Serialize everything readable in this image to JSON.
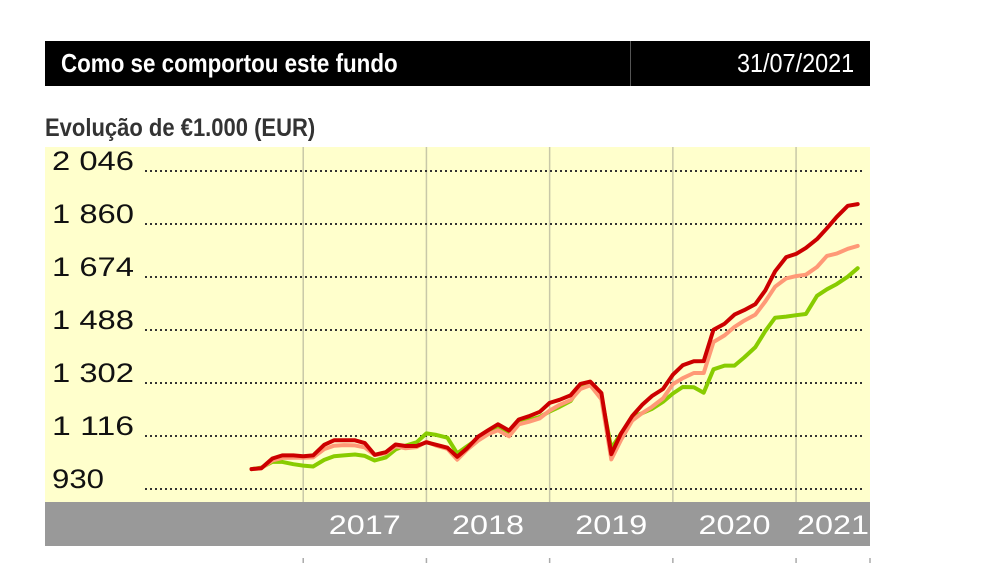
{
  "header": {
    "title": "Como se comportou este fundo",
    "date": "31/07/2021"
  },
  "subtitle": "Evolução de €1.000 (EUR)",
  "colors": {
    "plot_background": "#ffffcc",
    "axis_band": "#999999",
    "grid_dotted": "#333333",
    "year_lines": "#c8c8a8"
  },
  "chart_data": {
    "type": "line",
    "title": "Evolução de €1.000 (EUR)",
    "ylim": [
      930,
      2046
    ],
    "yticks": [
      930,
      1116,
      1302,
      1488,
      1674,
      1860,
      2046
    ],
    "ytick_labels": [
      "930",
      "1 116",
      "1 302",
      "1 488",
      "1 674",
      "1 860",
      "2 046"
    ],
    "xlim": [
      2016.0,
      2021.6
    ],
    "year_boundaries": [
      2017,
      2018,
      2019,
      2020,
      2021
    ],
    "xtick_labels": [
      "2017",
      "2018",
      "2019",
      "2020",
      "2021"
    ],
    "grid": true,
    "series": [
      {
        "color": "#cc0000",
        "x": [
          2016.58,
          2016.66,
          2016.75,
          2016.83,
          2016.92,
          2017.0,
          2017.08,
          2017.17,
          2017.25,
          2017.33,
          2017.42,
          2017.5,
          2017.58,
          2017.67,
          2017.75,
          2017.83,
          2017.92,
          2018.0,
          2018.08,
          2018.17,
          2018.25,
          2018.33,
          2018.42,
          2018.5,
          2018.58,
          2018.67,
          2018.75,
          2018.83,
          2018.92,
          2019.0,
          2019.08,
          2019.17,
          2019.25,
          2019.33,
          2019.42,
          2019.5,
          2019.58,
          2019.67,
          2019.75,
          2019.83,
          2019.92,
          2020.0,
          2020.08,
          2020.17,
          2020.25,
          2020.33,
          2020.42,
          2020.5,
          2020.58,
          2020.67,
          2020.75,
          2020.83,
          2020.92,
          2021.0,
          2021.08,
          2021.17,
          2021.25,
          2021.33,
          2021.42,
          2021.5
        ],
        "values": [
          1000,
          1003,
          1037,
          1048,
          1048,
          1045,
          1048,
          1085,
          1101,
          1101,
          1101,
          1091,
          1050,
          1059,
          1086,
          1081,
          1081,
          1094,
          1085,
          1075,
          1043,
          1073,
          1114,
          1136,
          1157,
          1135,
          1174,
          1185,
          1201,
          1232,
          1243,
          1259,
          1299,
          1307,
          1267,
          1052,
          1125,
          1186,
          1225,
          1256,
          1281,
          1331,
          1364,
          1378,
          1379,
          1489,
          1510,
          1542,
          1558,
          1579,
          1627,
          1694,
          1744,
          1755,
          1776,
          1807,
          1845,
          1885,
          1924,
          1930
        ]
      },
      {
        "color": "#ff9977",
        "x": [
          2016.58,
          2016.66,
          2016.75,
          2016.83,
          2016.92,
          2017.0,
          2017.08,
          2017.17,
          2017.25,
          2017.33,
          2017.42,
          2017.5,
          2017.58,
          2017.67,
          2017.75,
          2017.83,
          2017.92,
          2018.0,
          2018.08,
          2018.17,
          2018.25,
          2018.33,
          2018.42,
          2018.5,
          2018.58,
          2018.67,
          2018.75,
          2018.83,
          2018.92,
          2019.0,
          2019.08,
          2019.17,
          2019.25,
          2019.33,
          2019.42,
          2019.5,
          2019.58,
          2019.67,
          2019.75,
          2019.83,
          2019.92,
          2020.0,
          2020.08,
          2020.17,
          2020.25,
          2020.33,
          2020.42,
          2020.5,
          2020.58,
          2020.67,
          2020.75,
          2020.83,
          2020.92,
          2021.0,
          2021.08,
          2021.17,
          2021.25,
          2021.33,
          2021.42,
          2021.5
        ],
        "values": [
          1000,
          1003,
          1030,
          1039,
          1040,
          1040,
          1041,
          1070,
          1082,
          1084,
          1083,
          1076,
          1049,
          1056,
          1080,
          1073,
          1077,
          1096,
          1082,
          1071,
          1033,
          1068,
          1100,
          1122,
          1136,
          1115,
          1157,
          1166,
          1178,
          1205,
          1225,
          1242,
          1281,
          1294,
          1245,
          1034,
          1103,
          1170,
          1196,
          1218,
          1248,
          1298,
          1319,
          1337,
          1337,
          1446,
          1469,
          1499,
          1521,
          1542,
          1588,
          1640,
          1669,
          1677,
          1682,
          1709,
          1748,
          1756,
          1773,
          1783
        ]
      },
      {
        "color": "#88cc00",
        "x": [
          2016.58,
          2016.66,
          2016.75,
          2016.83,
          2016.92,
          2017.0,
          2017.08,
          2017.17,
          2017.25,
          2017.33,
          2017.42,
          2017.5,
          2017.58,
          2017.67,
          2017.75,
          2017.83,
          2017.92,
          2018.0,
          2018.08,
          2018.17,
          2018.25,
          2018.33,
          2018.42,
          2018.5,
          2018.58,
          2018.67,
          2018.75,
          2018.83,
          2018.92,
          2019.0,
          2019.08,
          2019.17,
          2019.25,
          2019.33,
          2019.42,
          2019.5,
          2019.58,
          2019.67,
          2019.75,
          2019.83,
          2019.92,
          2020.0,
          2020.08,
          2020.17,
          2020.25,
          2020.33,
          2020.42,
          2020.5,
          2020.58,
          2020.67,
          2020.75,
          2020.83,
          2020.92,
          2021.0,
          2021.08,
          2021.17,
          2021.25,
          2021.33,
          2021.42,
          2021.5
        ],
        "values": [
          1000,
          1005,
          1025,
          1025,
          1017,
          1012,
          1009,
          1032,
          1045,
          1048,
          1051,
          1046,
          1030,
          1041,
          1069,
          1082,
          1094,
          1125,
          1120,
          1110,
          1055,
          1080,
          1106,
          1124,
          1143,
          1125,
          1163,
          1172,
          1183,
          1202,
          1218,
          1239,
          1290,
          1300,
          1254,
          1073,
          1125,
          1182,
          1196,
          1211,
          1236,
          1265,
          1288,
          1287,
          1268,
          1350,
          1363,
          1363,
          1392,
          1428,
          1484,
          1531,
          1535,
          1540,
          1544,
          1608,
          1631,
          1649,
          1675,
          1705
        ]
      }
    ]
  }
}
